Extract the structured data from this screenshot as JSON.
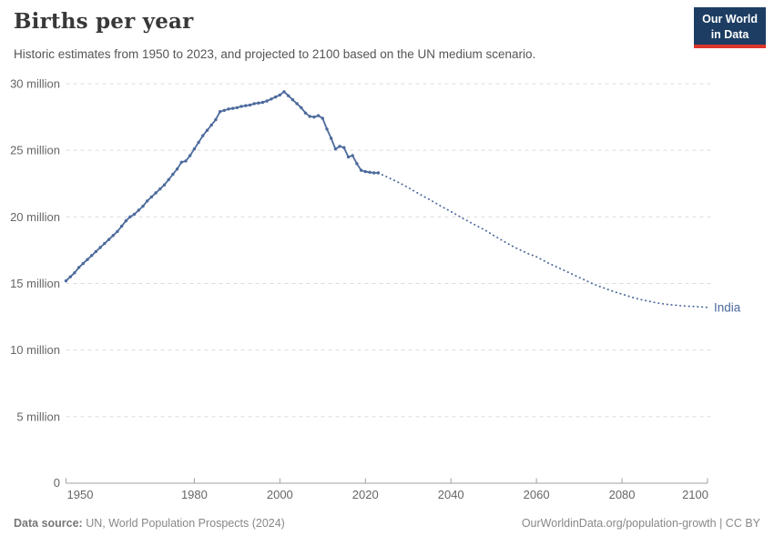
{
  "header": {
    "title": "Births per year",
    "subtitle": "Historic estimates from 1950 to 2023, and projected to 2100 based on the UN medium scenario.",
    "logo": {
      "line1": "Our World",
      "line2": "in Data"
    }
  },
  "footer": {
    "source_label": "Data source:",
    "source_text": "UN, World Population Prospects (2024)",
    "link_text": "OurWorldinData.org/population-growth | CC BY"
  },
  "colors": {
    "line": "#4c6a9c",
    "grid": "#dcdcdc",
    "axis": "#a0a0a0",
    "tick_text": "#666666",
    "logo_bg": "#1d3d63",
    "logo_red": "#dc352b"
  },
  "chart_data": {
    "type": "line",
    "title": "Births per year",
    "entity": "India",
    "unit": "million",
    "xlim": [
      1950,
      2100
    ],
    "ylim": [
      0,
      30
    ],
    "grid": "dashed-horizontal",
    "legend_position": "end-of-line",
    "y_ticks": [
      {
        "value": 0,
        "label": "0"
      },
      {
        "value": 5,
        "label": "5 million"
      },
      {
        "value": 10,
        "label": "10 million"
      },
      {
        "value": 15,
        "label": "15 million"
      },
      {
        "value": 20,
        "label": "20 million"
      },
      {
        "value": 25,
        "label": "25 million"
      },
      {
        "value": 30,
        "label": "30 million"
      }
    ],
    "x_ticks": [
      {
        "value": 1950,
        "label": "1950"
      },
      {
        "value": 1980,
        "label": "1980"
      },
      {
        "value": 2000,
        "label": "2000"
      },
      {
        "value": 2020,
        "label": "2020"
      },
      {
        "value": 2040,
        "label": "2040"
      },
      {
        "value": 2060,
        "label": "2060"
      },
      {
        "value": 2080,
        "label": "2080"
      },
      {
        "value": 2100,
        "label": "2100"
      }
    ],
    "series": [
      {
        "name": "India (historic estimates)",
        "style": "solid",
        "markers": true,
        "points": [
          [
            1950,
            15.2
          ],
          [
            1951,
            15.5
          ],
          [
            1952,
            15.8
          ],
          [
            1953,
            16.2
          ],
          [
            1954,
            16.5
          ],
          [
            1955,
            16.8
          ],
          [
            1956,
            17.1
          ],
          [
            1957,
            17.4
          ],
          [
            1958,
            17.7
          ],
          [
            1959,
            18.0
          ],
          [
            1960,
            18.3
          ],
          [
            1961,
            18.6
          ],
          [
            1962,
            18.9
          ],
          [
            1963,
            19.3
          ],
          [
            1964,
            19.7
          ],
          [
            1965,
            20.0
          ],
          [
            1966,
            20.2
          ],
          [
            1967,
            20.5
          ],
          [
            1968,
            20.8
          ],
          [
            1969,
            21.2
          ],
          [
            1970,
            21.5
          ],
          [
            1971,
            21.8
          ],
          [
            1972,
            22.1
          ],
          [
            1973,
            22.4
          ],
          [
            1974,
            22.8
          ],
          [
            1975,
            23.2
          ],
          [
            1976,
            23.6
          ],
          [
            1977,
            24.1
          ],
          [
            1978,
            24.2
          ],
          [
            1979,
            24.6
          ],
          [
            1980,
            25.1
          ],
          [
            1981,
            25.6
          ],
          [
            1982,
            26.1
          ],
          [
            1983,
            26.5
          ],
          [
            1984,
            26.9
          ],
          [
            1985,
            27.3
          ],
          [
            1986,
            27.9
          ],
          [
            1987,
            28.0
          ],
          [
            1988,
            28.1
          ],
          [
            1989,
            28.15
          ],
          [
            1990,
            28.2
          ],
          [
            1991,
            28.3
          ],
          [
            1992,
            28.35
          ],
          [
            1993,
            28.4
          ],
          [
            1994,
            28.5
          ],
          [
            1995,
            28.55
          ],
          [
            1996,
            28.6
          ],
          [
            1997,
            28.7
          ],
          [
            1998,
            28.85
          ],
          [
            1999,
            29.0
          ],
          [
            2000,
            29.15
          ],
          [
            2001,
            29.4
          ],
          [
            2002,
            29.1
          ],
          [
            2003,
            28.8
          ],
          [
            2004,
            28.5
          ],
          [
            2005,
            28.2
          ],
          [
            2006,
            27.8
          ],
          [
            2007,
            27.55
          ],
          [
            2008,
            27.5
          ],
          [
            2009,
            27.6
          ],
          [
            2010,
            27.4
          ],
          [
            2011,
            26.6
          ],
          [
            2012,
            25.9
          ],
          [
            2013,
            25.1
          ],
          [
            2014,
            25.3
          ],
          [
            2015,
            25.2
          ],
          [
            2016,
            24.5
          ],
          [
            2017,
            24.6
          ],
          [
            2018,
            24.0
          ],
          [
            2019,
            23.5
          ],
          [
            2020,
            23.4
          ],
          [
            2021,
            23.35
          ],
          [
            2022,
            23.3
          ],
          [
            2023,
            23.3
          ]
        ]
      },
      {
        "name": "India (UN medium projection)",
        "style": "dotted",
        "markers": false,
        "points": [
          [
            2023,
            23.3
          ],
          [
            2025,
            23.0
          ],
          [
            2028,
            22.55
          ],
          [
            2030,
            22.2
          ],
          [
            2033,
            21.65
          ],
          [
            2035,
            21.3
          ],
          [
            2038,
            20.75
          ],
          [
            2040,
            20.4
          ],
          [
            2043,
            19.85
          ],
          [
            2045,
            19.5
          ],
          [
            2048,
            19.0
          ],
          [
            2050,
            18.6
          ],
          [
            2053,
            18.05
          ],
          [
            2055,
            17.7
          ],
          [
            2058,
            17.25
          ],
          [
            2060,
            17.0
          ],
          [
            2063,
            16.5
          ],
          [
            2065,
            16.2
          ],
          [
            2068,
            15.75
          ],
          [
            2070,
            15.45
          ],
          [
            2073,
            15.0
          ],
          [
            2075,
            14.75
          ],
          [
            2078,
            14.4
          ],
          [
            2080,
            14.2
          ],
          [
            2083,
            13.9
          ],
          [
            2085,
            13.75
          ],
          [
            2088,
            13.55
          ],
          [
            2090,
            13.45
          ],
          [
            2093,
            13.35
          ],
          [
            2095,
            13.3
          ],
          [
            2098,
            13.25
          ],
          [
            2100,
            13.2
          ]
        ]
      }
    ]
  }
}
